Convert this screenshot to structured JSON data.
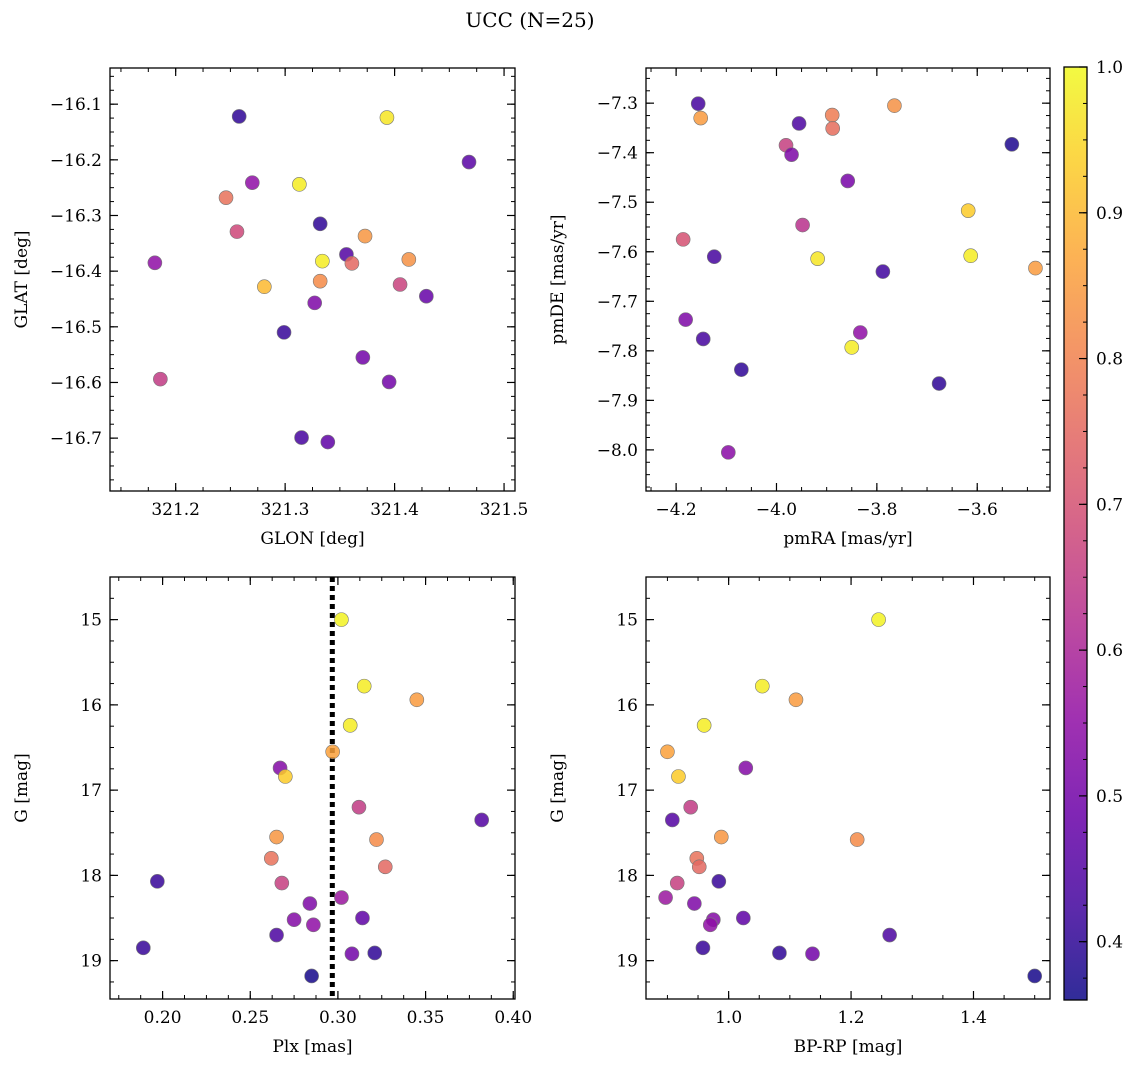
{
  "title": "UCC (N=25)",
  "colormap": {
    "name": "plasma",
    "range": [
      0.36,
      1.0
    ],
    "ticks": [
      0.4,
      0.5,
      0.6,
      0.7,
      0.8,
      0.9,
      1.0
    ],
    "tick_labels": [
      "0.4",
      "0.5",
      "0.6",
      "0.7",
      "0.8",
      "0.9",
      "1.0"
    ]
  },
  "chart_data": [
    {
      "type": "scatter",
      "xlabel": "GLON [deg]",
      "ylabel": "GLAT [deg]",
      "xlim": [
        321.14,
        321.51
      ],
      "ylim": [
        -16.795,
        -16.035
      ],
      "y_inverted": false,
      "xticks": [
        321.2,
        321.3,
        321.4,
        321.5
      ],
      "xtick_labels": [
        "321.2",
        "321.3",
        "321.4",
        "321.5"
      ],
      "yticks": [
        -16.1,
        -16.2,
        -16.3,
        -16.4,
        -16.5,
        -16.6,
        -16.7
      ],
      "ytick_labels": [
        "−16.1",
        "−16.2",
        "−16.3",
        "−16.4",
        "−16.5",
        "−16.6",
        "−16.7"
      ],
      "points": [
        {
          "x": 321.393,
          "y": -16.124,
          "c": 0.97
        },
        {
          "x": 321.258,
          "y": -16.122,
          "c": 0.4
        },
        {
          "x": 321.468,
          "y": -16.204,
          "c": 0.46
        },
        {
          "x": 321.27,
          "y": -16.241,
          "c": 0.55
        },
        {
          "x": 321.313,
          "y": -16.244,
          "c": 0.98
        },
        {
          "x": 321.246,
          "y": -16.268,
          "c": 0.77
        },
        {
          "x": 321.332,
          "y": -16.315,
          "c": 0.4
        },
        {
          "x": 321.256,
          "y": -16.329,
          "c": 0.68
        },
        {
          "x": 321.373,
          "y": -16.337,
          "c": 0.84
        },
        {
          "x": 321.356,
          "y": -16.37,
          "c": 0.45
        },
        {
          "x": 321.334,
          "y": -16.382,
          "c": 0.98
        },
        {
          "x": 321.361,
          "y": -16.386,
          "c": 0.75
        },
        {
          "x": 321.181,
          "y": -16.385,
          "c": 0.55
        },
        {
          "x": 321.413,
          "y": -16.379,
          "c": 0.83
        },
        {
          "x": 321.332,
          "y": -16.418,
          "c": 0.82
        },
        {
          "x": 321.281,
          "y": -16.428,
          "c": 0.9
        },
        {
          "x": 321.405,
          "y": -16.424,
          "c": 0.67
        },
        {
          "x": 321.429,
          "y": -16.445,
          "c": 0.48
        },
        {
          "x": 321.327,
          "y": -16.457,
          "c": 0.52
        },
        {
          "x": 321.299,
          "y": -16.51,
          "c": 0.41
        },
        {
          "x": 321.371,
          "y": -16.555,
          "c": 0.5
        },
        {
          "x": 321.186,
          "y": -16.594,
          "c": 0.65
        },
        {
          "x": 321.395,
          "y": -16.599,
          "c": 0.5
        },
        {
          "x": 321.315,
          "y": -16.699,
          "c": 0.43
        },
        {
          "x": 321.339,
          "y": -16.707,
          "c": 0.47
        }
      ]
    },
    {
      "type": "scatter",
      "xlabel": "pmRA [mas/yr]",
      "ylabel": "pmDE [mas/yr]",
      "xlim": [
        -4.26,
        -3.455
      ],
      "ylim": [
        -8.083,
        -7.229
      ],
      "y_inverted": false,
      "xticks": [
        -4.2,
        -4.0,
        -3.8,
        -3.6
      ],
      "xtick_labels": [
        "−4.2",
        "−4.0",
        "−3.8",
        "−3.6"
      ],
      "yticks": [
        -7.3,
        -7.4,
        -7.5,
        -7.6,
        -7.7,
        -7.8,
        -7.9,
        -8.0
      ],
      "ytick_labels": [
        "−7.3",
        "−7.4",
        "−7.5",
        "−7.6",
        "−7.7",
        "−7.8",
        "−7.9",
        "−8.0"
      ],
      "points": [
        {
          "x": -4.156,
          "y": -7.301,
          "c": 0.43
        },
        {
          "x": -4.151,
          "y": -7.33,
          "c": 0.85
        },
        {
          "x": -3.765,
          "y": -7.305,
          "c": 0.83
        },
        {
          "x": -3.889,
          "y": -7.324,
          "c": 0.79
        },
        {
          "x": -3.955,
          "y": -7.341,
          "c": 0.44
        },
        {
          "x": -3.888,
          "y": -7.351,
          "c": 0.76
        },
        {
          "x": -3.981,
          "y": -7.385,
          "c": 0.66
        },
        {
          "x": -3.97,
          "y": -7.404,
          "c": 0.52
        },
        {
          "x": -3.531,
          "y": -7.383,
          "c": 0.38
        },
        {
          "x": -3.858,
          "y": -7.457,
          "c": 0.51
        },
        {
          "x": -3.948,
          "y": -7.546,
          "c": 0.63
        },
        {
          "x": -3.618,
          "y": -7.517,
          "c": 0.93
        },
        {
          "x": -4.186,
          "y": -7.575,
          "c": 0.7
        },
        {
          "x": -4.124,
          "y": -7.61,
          "c": 0.43
        },
        {
          "x": -3.613,
          "y": -7.608,
          "c": 0.98
        },
        {
          "x": -3.918,
          "y": -7.614,
          "c": 0.97
        },
        {
          "x": -3.484,
          "y": -7.633,
          "c": 0.85
        },
        {
          "x": -3.788,
          "y": -7.64,
          "c": 0.42
        },
        {
          "x": -4.181,
          "y": -7.737,
          "c": 0.52
        },
        {
          "x": -3.833,
          "y": -7.763,
          "c": 0.55
        },
        {
          "x": -4.146,
          "y": -7.776,
          "c": 0.43
        },
        {
          "x": -3.85,
          "y": -7.793,
          "c": 0.98
        },
        {
          "x": -4.07,
          "y": -7.838,
          "c": 0.4
        },
        {
          "x": -3.676,
          "y": -7.866,
          "c": 0.4
        },
        {
          "x": -4.096,
          "y": -8.005,
          "c": 0.54
        }
      ]
    },
    {
      "type": "scatter",
      "xlabel": "Plx [mas]",
      "ylabel": "G [mag]",
      "xlim": [
        0.17,
        0.401
      ],
      "ylim": [
        14.5,
        19.45
      ],
      "y_inverted": true,
      "xticks": [
        0.2,
        0.25,
        0.3,
        0.35,
        0.4
      ],
      "xtick_labels": [
        "0.20",
        "0.25",
        "0.30",
        "0.35",
        "0.40"
      ],
      "yticks": [
        15,
        16,
        17,
        18,
        19
      ],
      "ytick_labels": [
        "15",
        "16",
        "17",
        "18",
        "19"
      ],
      "vline": {
        "x": 0.2968,
        "style": "dotted"
      },
      "points": [
        {
          "x": 0.302,
          "y": 15.0,
          "c": 0.99
        },
        {
          "x": 0.315,
          "y": 15.78,
          "c": 0.98
        },
        {
          "x": 0.345,
          "y": 15.94,
          "c": 0.85
        },
        {
          "x": 0.307,
          "y": 16.24,
          "c": 0.98
        },
        {
          "x": 0.297,
          "y": 16.55,
          "c": 0.86
        },
        {
          "x": 0.267,
          "y": 16.74,
          "c": 0.53
        },
        {
          "x": 0.27,
          "y": 16.84,
          "c": 0.93
        },
        {
          "x": 0.312,
          "y": 17.2,
          "c": 0.65
        },
        {
          "x": 0.382,
          "y": 17.35,
          "c": 0.45
        },
        {
          "x": 0.265,
          "y": 17.55,
          "c": 0.84
        },
        {
          "x": 0.322,
          "y": 17.58,
          "c": 0.82
        },
        {
          "x": 0.262,
          "y": 17.8,
          "c": 0.77
        },
        {
          "x": 0.327,
          "y": 17.9,
          "c": 0.75
        },
        {
          "x": 0.197,
          "y": 18.07,
          "c": 0.41
        },
        {
          "x": 0.268,
          "y": 18.09,
          "c": 0.66
        },
        {
          "x": 0.302,
          "y": 18.26,
          "c": 0.57
        },
        {
          "x": 0.284,
          "y": 18.33,
          "c": 0.52
        },
        {
          "x": 0.314,
          "y": 18.5,
          "c": 0.47
        },
        {
          "x": 0.275,
          "y": 18.52,
          "c": 0.53
        },
        {
          "x": 0.286,
          "y": 18.58,
          "c": 0.55
        },
        {
          "x": 0.265,
          "y": 18.7,
          "c": 0.44
        },
        {
          "x": 0.189,
          "y": 18.85,
          "c": 0.41
        },
        {
          "x": 0.321,
          "y": 18.91,
          "c": 0.4
        },
        {
          "x": 0.308,
          "y": 18.92,
          "c": 0.5
        },
        {
          "x": 0.285,
          "y": 19.18,
          "c": 0.37
        }
      ]
    },
    {
      "type": "scatter",
      "xlabel": "BP-RP [mag]",
      "ylabel": "G [mag]",
      "xlim": [
        0.865,
        1.525
      ],
      "ylim": [
        14.5,
        19.45
      ],
      "y_inverted": true,
      "xticks": [
        1.0,
        1.2,
        1.4
      ],
      "xtick_labels": [
        "1.0",
        "1.2",
        "1.4"
      ],
      "yticks": [
        15,
        16,
        17,
        18,
        19
      ],
      "ytick_labels": [
        "15",
        "16",
        "17",
        "18",
        "19"
      ],
      "points": [
        {
          "x": 1.245,
          "y": 15.0,
          "c": 0.99
        },
        {
          "x": 1.055,
          "y": 15.78,
          "c": 0.98
        },
        {
          "x": 1.11,
          "y": 15.94,
          "c": 0.85
        },
        {
          "x": 0.96,
          "y": 16.24,
          "c": 0.98
        },
        {
          "x": 0.9,
          "y": 16.55,
          "c": 0.86
        },
        {
          "x": 1.028,
          "y": 16.74,
          "c": 0.53
        },
        {
          "x": 0.918,
          "y": 16.84,
          "c": 0.93
        },
        {
          "x": 0.938,
          "y": 17.2,
          "c": 0.65
        },
        {
          "x": 0.908,
          "y": 17.35,
          "c": 0.45
        },
        {
          "x": 0.988,
          "y": 17.55,
          "c": 0.84
        },
        {
          "x": 1.21,
          "y": 17.58,
          "c": 0.82
        },
        {
          "x": 0.948,
          "y": 17.8,
          "c": 0.77
        },
        {
          "x": 0.952,
          "y": 17.9,
          "c": 0.75
        },
        {
          "x": 0.984,
          "y": 18.07,
          "c": 0.41
        },
        {
          "x": 0.916,
          "y": 18.09,
          "c": 0.66
        },
        {
          "x": 0.897,
          "y": 18.26,
          "c": 0.57
        },
        {
          "x": 0.944,
          "y": 18.33,
          "c": 0.52
        },
        {
          "x": 1.024,
          "y": 18.5,
          "c": 0.47
        },
        {
          "x": 0.975,
          "y": 18.52,
          "c": 0.53
        },
        {
          "x": 0.97,
          "y": 18.58,
          "c": 0.55
        },
        {
          "x": 1.263,
          "y": 18.7,
          "c": 0.44
        },
        {
          "x": 0.958,
          "y": 18.85,
          "c": 0.41
        },
        {
          "x": 1.083,
          "y": 18.91,
          "c": 0.4
        },
        {
          "x": 1.137,
          "y": 18.92,
          "c": 0.5
        },
        {
          "x": 1.5,
          "y": 19.18,
          "c": 0.37
        }
      ]
    }
  ]
}
